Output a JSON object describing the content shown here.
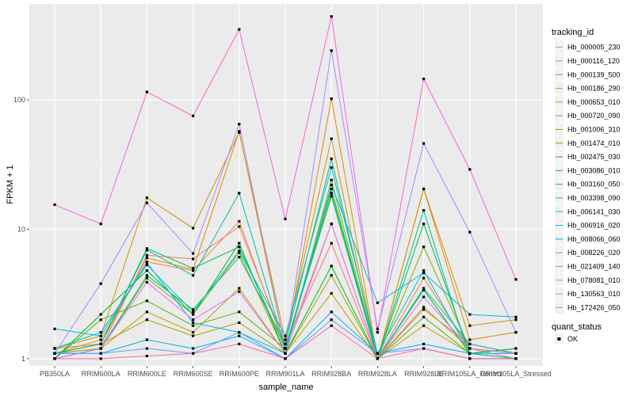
{
  "chart_data": {
    "type": "line",
    "xlabel": "sample_name",
    "ylabel": "FPKM + 1",
    "y_scale": "log10",
    "ylim": [
      0.88,
      550
    ],
    "y_ticks": [
      1,
      10,
      100
    ],
    "grid": true,
    "categories": [
      "PB350LA",
      "RRIM600LA",
      "RRIM600LE",
      "RRIM600SE",
      "RRIM600PE",
      "RRIM901LA",
      "RRIM928BA",
      "RRIM928LA",
      "RRIM928LE",
      "RRIM105LA_Control",
      "RRIM105LA_Stressed"
    ],
    "legend": {
      "title": "tracking_id",
      "position": "right",
      "shape_title": "quant_status",
      "shape_label": "OK"
    },
    "series": [
      {
        "name": "Hb_000005_230",
        "color": "#F8766D",
        "values": [
          1.1,
          1.2,
          6.3,
          5.9,
          10.5,
          1.3,
          7.8,
          1.0,
          2.4,
          1.3,
          1.1
        ]
      },
      {
        "name": "Hb_000116_120",
        "color": "#EE8043",
        "values": [
          1.1,
          1.4,
          5.6,
          4.8,
          11.5,
          1.2,
          11.0,
          1.0,
          4.2,
          1.2,
          1.0
        ]
      },
      {
        "name": "Hb_000139_500",
        "color": "#E18A00",
        "values": [
          1.2,
          1.3,
          6.0,
          4.9,
          57.0,
          1.2,
          102.0,
          1.0,
          20.5,
          1.4,
          1.6
        ]
      },
      {
        "name": "Hb_000186_290",
        "color": "#CF9400",
        "values": [
          1.2,
          1.5,
          17.5,
          10.2,
          56.0,
          1.4,
          50.0,
          1.0,
          20.5,
          1.8,
          2.0
        ]
      },
      {
        "name": "Hb_000653_010",
        "color": "#BB9D00",
        "values": [
          1.1,
          1.2,
          2.3,
          1.6,
          3.5,
          1.1,
          3.2,
          1.0,
          1.8,
          1.1,
          1.0
        ]
      },
      {
        "name": "Hb_000720_090",
        "color": "#A3A500",
        "values": [
          1.1,
          1.3,
          2.0,
          1.5,
          1.9,
          1.1,
          4.4,
          1.0,
          2.5,
          1.2,
          1.1
        ]
      },
      {
        "name": "Hb_001006_310",
        "color": "#85AD00",
        "values": [
          1.0,
          1.2,
          4.2,
          2.2,
          6.6,
          1.1,
          24.0,
          1.0,
          7.3,
          1.2,
          1.1
        ]
      },
      {
        "name": "Hb_001474_010",
        "color": "#5BB300",
        "values": [
          1.0,
          2.0,
          2.8,
          1.8,
          2.3,
          1.2,
          19.0,
          1.0,
          2.1,
          1.1,
          1.2
        ]
      },
      {
        "name": "Hb_002475_030",
        "color": "#00B81F",
        "values": [
          1.0,
          2.2,
          4.8,
          2.2,
          7.8,
          1.1,
          5.2,
          1.0,
          3.4,
          1.1,
          1.2
        ]
      },
      {
        "name": "Hb_003086_010",
        "color": "#00BC59",
        "values": [
          1.1,
          1.3,
          7.1,
          5.0,
          7.3,
          1.2,
          20.5,
          1.0,
          11.0,
          1.1,
          1.0
        ]
      },
      {
        "name": "Hb_003160_050",
        "color": "#00BF7D",
        "values": [
          1.0,
          1.2,
          4.4,
          2.4,
          6.1,
          1.3,
          35.0,
          1.0,
          14.0,
          1.0,
          1.0
        ]
      },
      {
        "name": "Hb_003398_090",
        "color": "#00C19F",
        "values": [
          1.1,
          1.3,
          6.9,
          4.4,
          19.0,
          1.2,
          18.0,
          1.0,
          3.5,
          1.3,
          1.1
        ]
      },
      {
        "name": "Hb_006141_030",
        "color": "#00BFC4",
        "values": [
          1.2,
          1.6,
          5.3,
          2.3,
          6.8,
          1.5,
          30.0,
          1.1,
          4.8,
          1.1,
          1.0
        ]
      },
      {
        "name": "Hb_006916_020",
        "color": "#00B8E5",
        "values": [
          1.7,
          1.5,
          5.5,
          1.9,
          1.6,
          1.1,
          22.0,
          2.7,
          4.6,
          2.2,
          2.1
        ]
      },
      {
        "name": "Hb_008066_060",
        "color": "#00ABFD",
        "values": [
          1.1,
          1.1,
          1.4,
          1.2,
          1.5,
          1.0,
          2.3,
          1.1,
          1.3,
          1.1,
          1.1
        ]
      },
      {
        "name": "Hb_008226_020",
        "color": "#619CFF",
        "values": [
          1.1,
          1.1,
          1.2,
          1.1,
          1.6,
          1.0,
          2.0,
          1.1,
          1.2,
          1.0,
          1.0
        ]
      },
      {
        "name": "Hb_021409_140",
        "color": "#A58AFF",
        "values": [
          1.1,
          3.8,
          16.0,
          6.5,
          65.0,
          1.2,
          240.0,
          1.7,
          46.0,
          9.5,
          1.6
        ]
      },
      {
        "name": "Hb_078081_010",
        "color": "#DF70F8",
        "values": [
          1.0,
          1.2,
          3.9,
          2.0,
          3.3,
          1.1,
          11.0,
          1.0,
          3.0,
          1.2,
          1.1
        ]
      },
      {
        "name": "Hb_130563_010",
        "color": "#FB61D7",
        "values": [
          15.5,
          11.0,
          115.0,
          75.0,
          350.0,
          12.0,
          440.0,
          1.6,
          145.0,
          29.0,
          4.1
        ]
      },
      {
        "name": "Hb_172426_050",
        "color": "#FF66A8",
        "values": [
          1.0,
          1.0,
          1.05,
          1.1,
          1.3,
          1.0,
          1.8,
          1.0,
          1.2,
          1.0,
          1.0
        ]
      }
    ]
  }
}
